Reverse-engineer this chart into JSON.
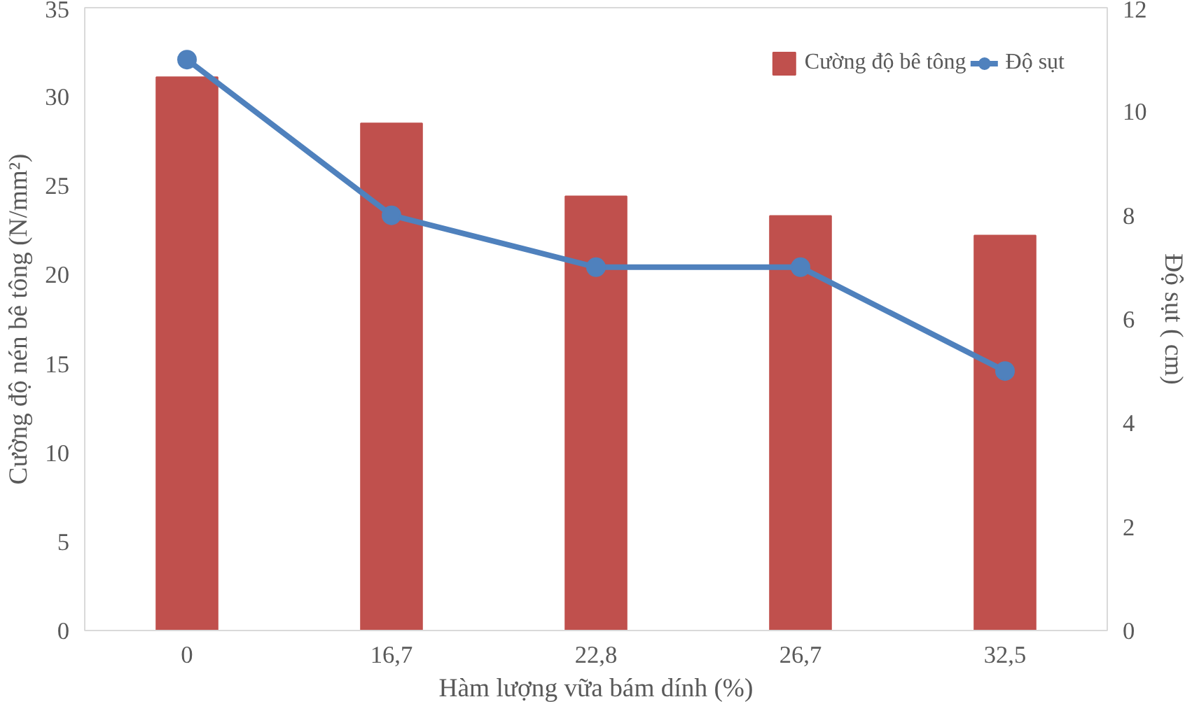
{
  "chart_data": {
    "type": "bar",
    "categories": [
      "0",
      "16,7",
      "22,8",
      "26,7",
      "32,5"
    ],
    "xlabel": "Hàm lượng vữa bám dính (%)",
    "ylabel": "Cường độ nén bê tông (N/mm²)",
    "y2label": "Độ sụt ( cm)",
    "ylim": [
      0,
      35
    ],
    "yticks": [
      0,
      5,
      10,
      15,
      20,
      25,
      30,
      35
    ],
    "y2lim": [
      0,
      12
    ],
    "y2ticks": [
      0,
      2,
      4,
      6,
      8,
      10,
      12
    ],
    "grid": false,
    "legend": "top right",
    "series": [
      {
        "name": "Cường độ bê tông",
        "color": "#c0504d",
        "values": [
          31.1,
          28.5,
          24.4,
          23.3,
          22.2
        ]
      },
      {
        "name": "Độ sụt",
        "type": "line",
        "axis": "y2",
        "color": "#4f81bd",
        "marker": "circle",
        "values": [
          11,
          8,
          7,
          7,
          5
        ]
      }
    ]
  }
}
